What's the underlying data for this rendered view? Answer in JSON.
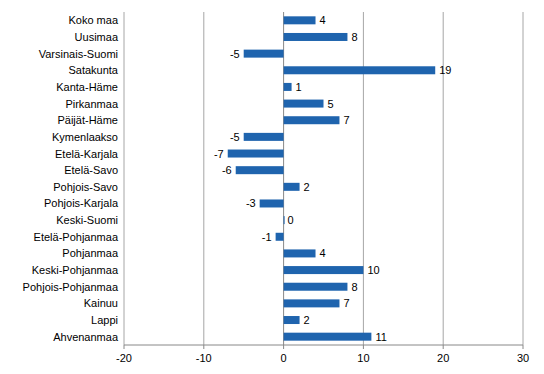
{
  "chart_data": {
    "type": "bar",
    "orientation": "horizontal",
    "categories": [
      "Koko maa",
      "Uusimaa",
      "Varsinais-Suomi",
      "Satakunta",
      "Kanta-Häme",
      "Pirkanmaa",
      "Päijät-Häme",
      "Kymenlaakso",
      "Etelä-Karjala",
      "Etelä-Savo",
      "Pohjois-Savo",
      "Pohjois-Karjala",
      "Keski-Suomi",
      "Etelä-Pohjanmaa",
      "Pohjanmaa",
      "Keski-Pohjanmaa",
      "Pohjois-Pohjanmaa",
      "Kainuu",
      "Lappi",
      "Ahvenanmaa"
    ],
    "values": [
      4,
      8,
      -5,
      19,
      1,
      5,
      7,
      -5,
      -7,
      -6,
      2,
      -3,
      0,
      -1,
      4,
      10,
      8,
      7,
      2,
      11
    ],
    "color": "#1f64ae",
    "xlim": [
      -20,
      30
    ],
    "xticks": [
      -20,
      -10,
      0,
      10,
      20,
      30
    ],
    "grid": true,
    "data_labels": true
  }
}
